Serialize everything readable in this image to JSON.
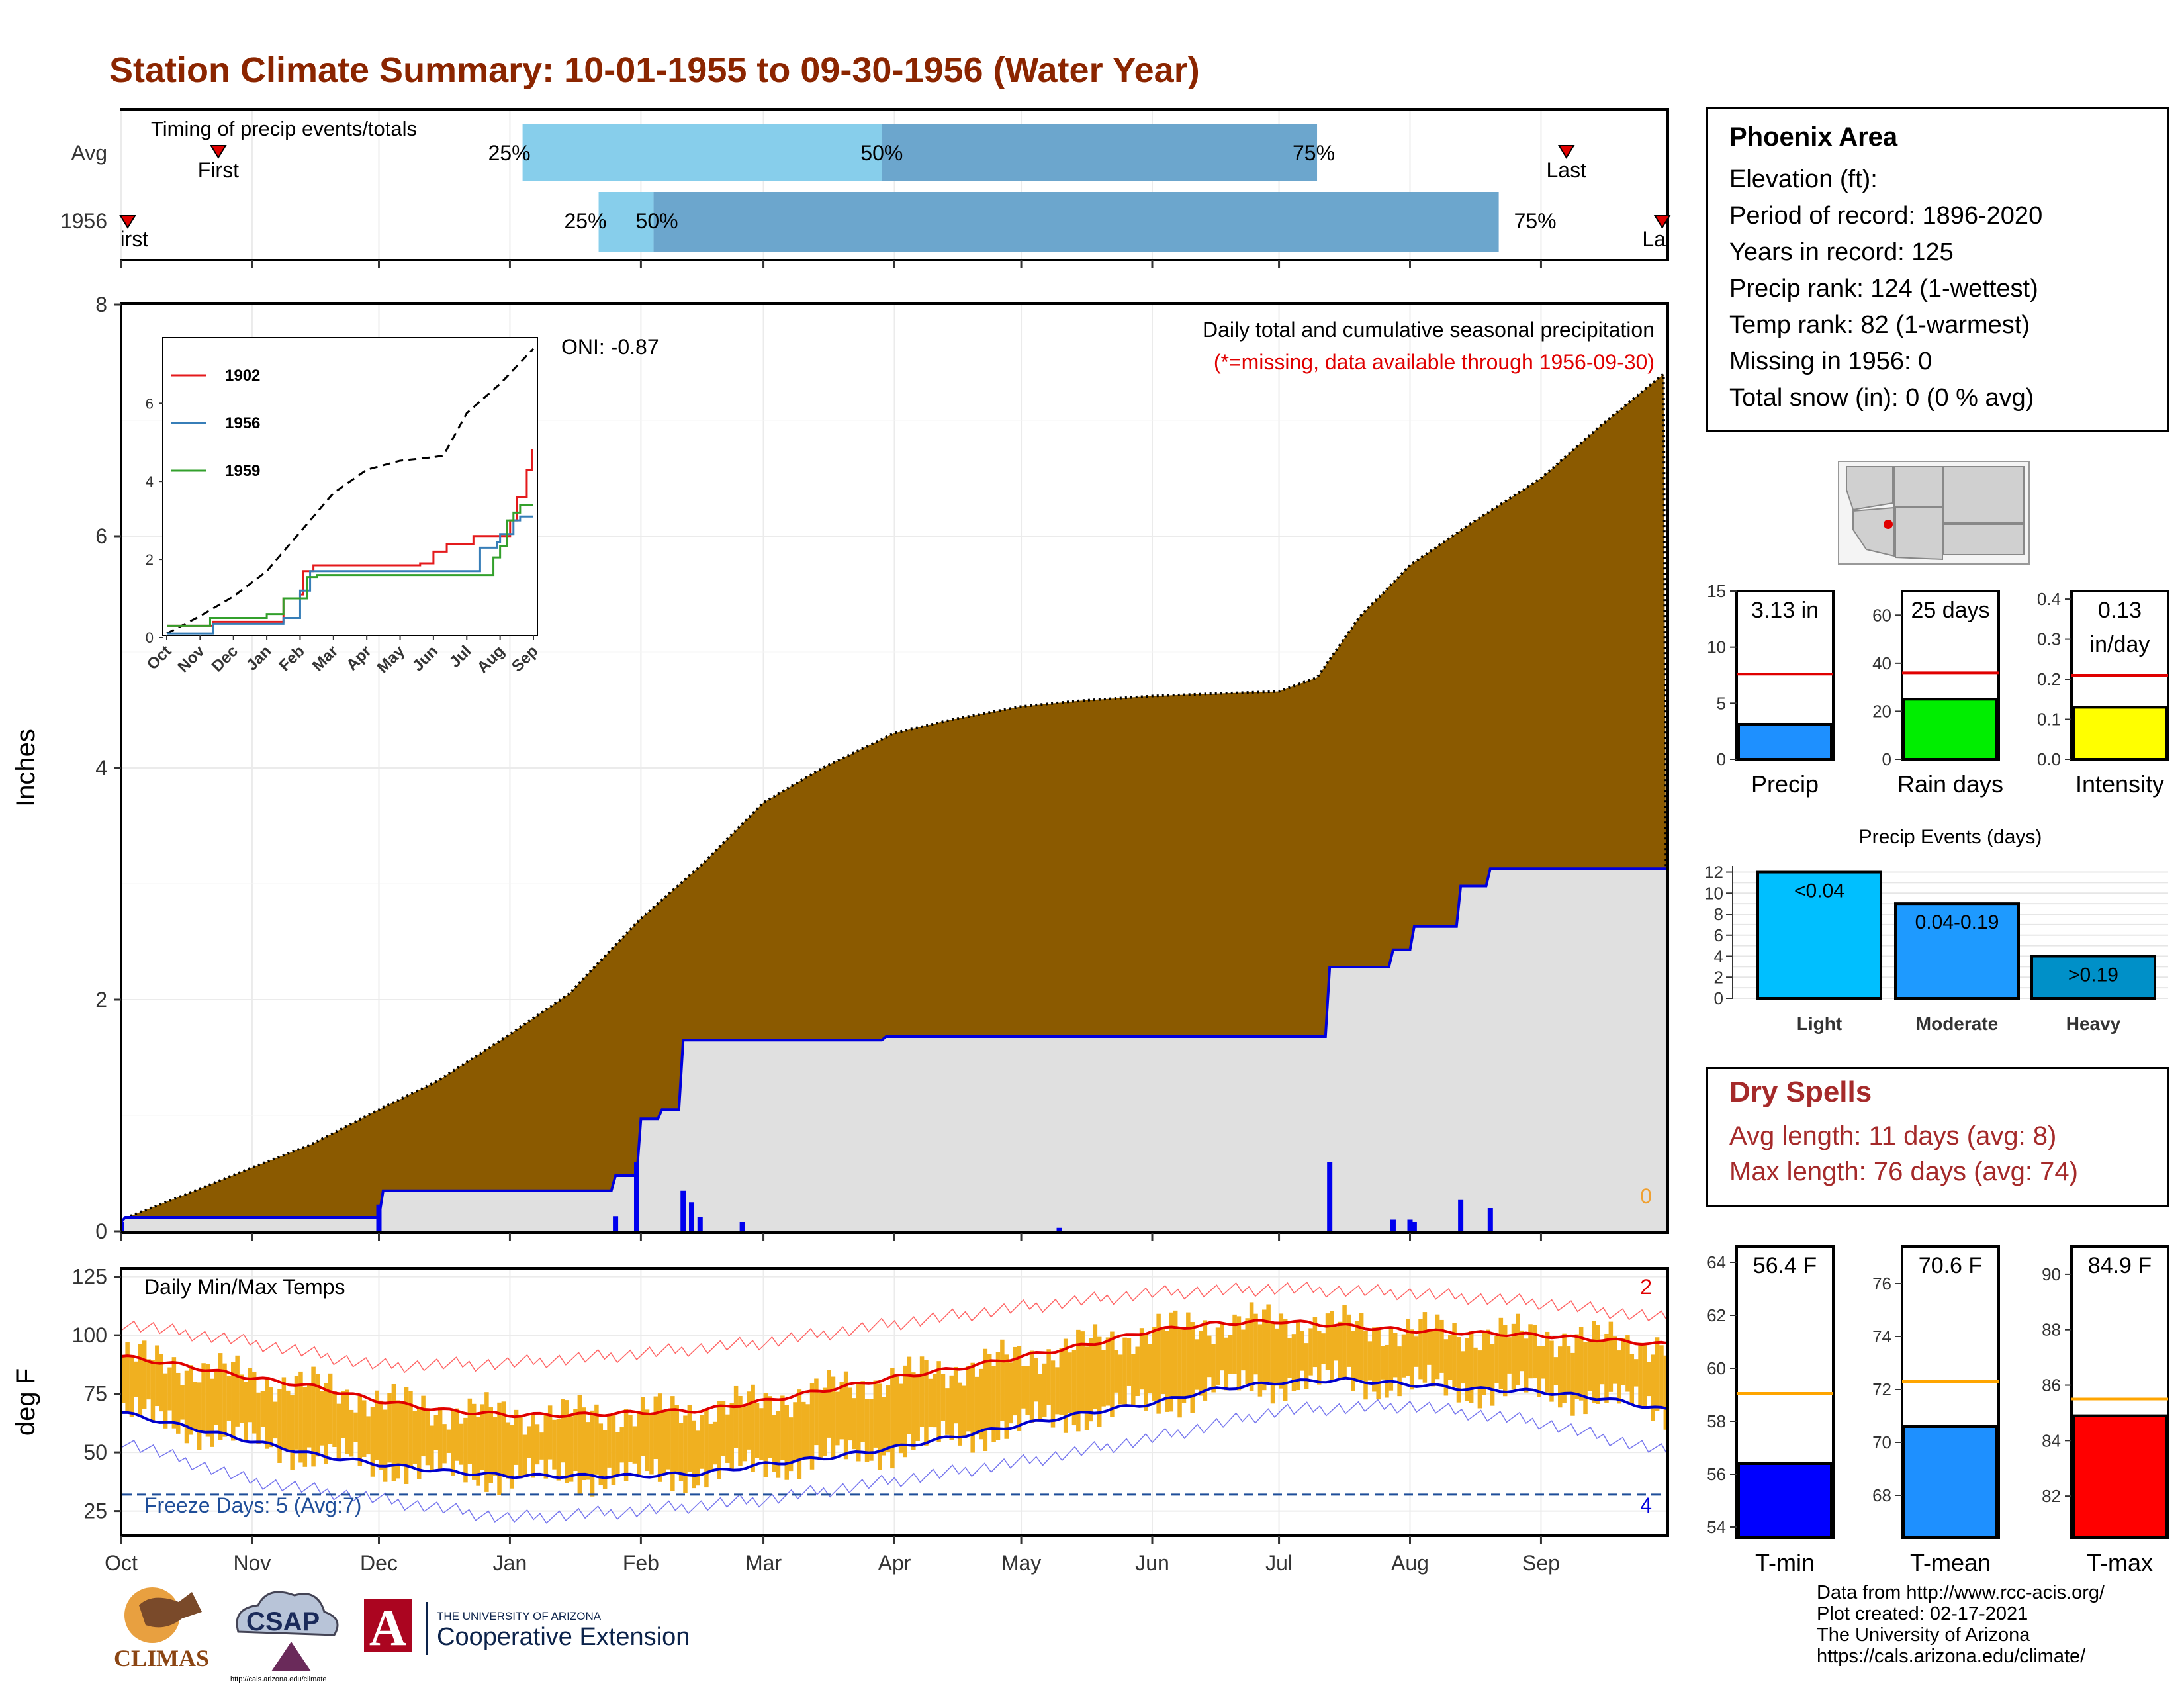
{
  "title": "Station Climate Summary: 10-01-1955 to 09-30-1956 (Water Year)",
  "colors": {
    "title": "#8b2500",
    "precip_fill": "#8b5a00",
    "obs_fill": "#e0e0e0",
    "obs_line": "#0000dd",
    "red": "#e00000",
    "gold": "#f0b020",
    "timing_light": "#87ceeb",
    "timing_dark": "#6ca6cd"
  },
  "timing": {
    "label": "Timing of precip events/totals",
    "rows": [
      {
        "name": "Avg",
        "p25": "25%",
        "p50": "50%",
        "p75": "75%",
        "first": "First",
        "last": "Last"
      },
      {
        "name": "1956",
        "p25": "25%",
        "p50": "50%",
        "p75": "75%",
        "first": "First",
        "last": "Last"
      }
    ],
    "avg": {
      "first": "1955-10-24",
      "p25": "1956-01-04",
      "p50": "1956-03-29",
      "p75": "1956-07-10",
      "last": "1956-09-07"
    },
    "y1956": {
      "first": "1955-10-01",
      "p25": "1956-01-22",
      "p50": "1956-02-04",
      "p75": "1956-08-22",
      "last": "1956-09-30"
    }
  },
  "station": {
    "name": "Phoenix Area",
    "lines": [
      "Elevation (ft):",
      "Period of record: 1896-2020",
      "Years in record: 125",
      "Precip rank: 124 (1-wettest)",
      "Temp rank: 82 (1-warmest)",
      "Missing in 1956: 0",
      "Total snow (in): 0 (0 % avg)"
    ]
  },
  "dry_spells": {
    "title": "Dry Spells",
    "avg_length": "Avg length: 11 days (avg: 8)",
    "max_length": "Max length: 76 days (avg: 74)"
  },
  "credits": [
    "Data from http://www.rcc-acis.org/",
    "Plot created: 02-17-2021",
    "The University of Arizona",
    "https://cals.arizona.edu/climate/"
  ],
  "logos": {
    "climas": "CLIMAS",
    "csap": "CSAP",
    "csap_url": "http://cals.arizona.edu/climate",
    "ua_line1": "THE UNIVERSITY OF ARIZONA",
    "ua_line2": "Cooperative Extension"
  },
  "chart_data": [
    {
      "id": "precip",
      "type": "area",
      "title": "Daily total and cumulative seasonal precipitation",
      "subtitle": "(*=missing, data available through 1956-09-30)",
      "annotation": "ONI: -0.87",
      "count_label": "0",
      "ylabel": "Inches",
      "ylim": [
        0,
        8
      ],
      "yticks": [
        0,
        2,
        4,
        6,
        8
      ],
      "xlabels": [
        "Oct",
        "Nov",
        "Dec",
        "Jan",
        "Feb",
        "Mar",
        "Apr",
        "May",
        "Jun",
        "Jul",
        "Aug",
        "Sep"
      ],
      "avg_cumulative": {
        "x": [
          "10-01",
          "10-15",
          "11-01",
          "11-15",
          "12-01",
          "12-15",
          "01-01",
          "01-15",
          "02-01",
          "02-15",
          "03-01",
          "03-15",
          "04-01",
          "04-15",
          "05-01",
          "05-15",
          "06-01",
          "06-15",
          "07-01",
          "07-10",
          "07-20",
          "08-01",
          "08-15",
          "09-01",
          "09-15",
          "09-30"
        ],
        "y": [
          0.1,
          0.3,
          0.55,
          0.75,
          1.05,
          1.3,
          1.7,
          2.05,
          2.7,
          3.15,
          3.7,
          4.0,
          4.3,
          4.42,
          4.53,
          4.58,
          4.62,
          4.64,
          4.66,
          4.78,
          5.3,
          5.75,
          6.1,
          6.5,
          6.95,
          7.4
        ]
      },
      "observed_cumulative": {
        "x": [
          "10-01",
          "10-02",
          "12-01",
          "12-02",
          "01-25",
          "01-26",
          "01-31",
          "02-01",
          "02-05",
          "02-06",
          "02-10",
          "02-11",
          "03-29",
          "03-30",
          "07-12",
          "07-13",
          "07-27",
          "07-28",
          "08-01",
          "08-02",
          "08-12",
          "08-13",
          "08-19",
          "08-20",
          "09-30"
        ],
        "y": [
          0.08,
          0.12,
          0.12,
          0.35,
          0.35,
          0.48,
          0.48,
          0.97,
          0.97,
          1.05,
          1.05,
          1.65,
          1.65,
          1.68,
          1.68,
          2.28,
          2.28,
          2.43,
          2.43,
          2.63,
          2.63,
          2.98,
          2.98,
          3.13,
          3.13
        ]
      },
      "daily": {
        "x": [
          "10-01",
          "12-01",
          "01-26",
          "01-31",
          "02-11",
          "02-13",
          "02-15",
          "02-25",
          "05-10",
          "07-13",
          "07-28",
          "08-01",
          "08-02",
          "08-13",
          "08-20"
        ],
        "y": [
          0.08,
          0.23,
          0.13,
          0.6,
          0.35,
          0.25,
          0.12,
          0.08,
          0.03,
          0.6,
          0.1,
          0.1,
          0.08,
          0.27,
          0.2
        ]
      }
    },
    {
      "id": "inset",
      "type": "line",
      "xlabels": [
        "Oct",
        "Nov",
        "Dec",
        "Jan",
        "Feb",
        "Mar",
        "Apr",
        "May",
        "Jun",
        "Jul",
        "Aug",
        "Sep"
      ],
      "yticks": [
        0,
        2,
        4,
        6
      ],
      "series": [
        {
          "name": "1902",
          "color": "#e41a1c",
          "x": [
            0,
            1.2,
            1.4,
            3.2,
            3.5,
            4.0,
            4.1,
            4.4,
            6.0,
            7.3,
            7.6,
            8.0,
            8.4,
            9.2,
            10.3,
            10.5,
            10.8,
            10.95,
            11.0
          ],
          "y": [
            0.3,
            0.3,
            0.4,
            0.4,
            1.0,
            1.1,
            1.7,
            1.85,
            1.85,
            1.85,
            1.9,
            2.2,
            2.4,
            2.6,
            3.0,
            3.6,
            4.3,
            4.8,
            4.8
          ]
        },
        {
          "name": "1956",
          "color": "#377eb8",
          "x": [
            0,
            1.0,
            1.4,
            3.5,
            4.0,
            4.3,
            5.9,
            6.0,
            9.4,
            9.9,
            10.0,
            10.4,
            10.6,
            11.0
          ],
          "y": [
            0.1,
            0.1,
            0.35,
            0.5,
            1.2,
            1.7,
            1.7,
            1.7,
            2.3,
            2.45,
            2.65,
            3.0,
            3.1,
            3.1
          ]
        },
        {
          "name": "1959",
          "color": "#33a02c",
          "x": [
            0,
            1.3,
            3.0,
            3.5,
            4.2,
            4.5,
            9.0,
            9.8,
            10.0,
            10.2,
            10.4,
            10.6,
            11.0
          ],
          "y": [
            0.3,
            0.5,
            0.6,
            1.0,
            1.55,
            1.6,
            1.6,
            2.05,
            2.35,
            3.0,
            3.2,
            3.4,
            3.4
          ]
        }
      ],
      "avg": {
        "x": [
          0,
          1,
          2,
          3,
          4,
          5,
          6,
          7,
          8,
          8.3,
          9,
          10,
          10.5,
          11
        ],
        "y": [
          0.1,
          0.55,
          1.05,
          1.7,
          2.7,
          3.7,
          4.3,
          4.53,
          4.62,
          4.66,
          5.75,
          6.5,
          6.95,
          7.4
        ]
      }
    },
    {
      "id": "temps",
      "type": "line",
      "title": "Daily Min/Max Temps",
      "ylabel": "deg F",
      "ylim": [
        15,
        128
      ],
      "yticks": [
        25,
        50,
        75,
        100,
        125
      ],
      "freeze_label": "Freeze Days: 5 (Avg:7)",
      "freeze_line": 32,
      "count_max": "2",
      "count_min": "4",
      "avg_max": {
        "x": [
          0,
          0.5,
          1,
          1.5,
          2,
          2.5,
          3,
          3.5,
          4,
          4.5,
          5,
          5.5,
          6,
          6.5,
          7,
          7.5,
          8,
          8.5,
          9,
          9.5,
          10,
          10.5,
          11,
          11.5,
          12
        ],
        "y": [
          91,
          87,
          82,
          78,
          72,
          68,
          66,
          66,
          67,
          68,
          72,
          77,
          82,
          86,
          91,
          96,
          102,
          105,
          106,
          104,
          102,
          101,
          100,
          98,
          96
        ]
      },
      "avg_min": {
        "x": [
          0,
          0.5,
          1,
          1.5,
          2,
          2.5,
          3,
          3.5,
          4,
          4.5,
          5,
          5.5,
          6,
          6.5,
          7,
          7.5,
          8,
          8.5,
          9,
          9.5,
          10,
          10.5,
          11,
          11.5,
          12
        ],
        "y": [
          67,
          61,
          55,
          49,
          45,
          42,
          40,
          40,
          40,
          41,
          45,
          48,
          52,
          57,
          62,
          67,
          71,
          77,
          80,
          81,
          79,
          77,
          76,
          73,
          68
        ]
      },
      "record_max": {
        "x": [
          0,
          1,
          2,
          3,
          4,
          5,
          6,
          7,
          8,
          9,
          10,
          11,
          12
        ],
        "y": [
          105,
          97,
          87,
          88,
          92,
          97,
          105,
          112,
          118,
          120,
          118,
          114,
          107
        ]
      },
      "record_min": {
        "x": [
          0,
          1,
          2,
          3,
          4,
          5,
          6,
          7,
          8,
          9,
          10,
          11,
          12
        ],
        "y": [
          55,
          38,
          30,
          22,
          25,
          30,
          38,
          46,
          56,
          68,
          70,
          63,
          50
        ]
      }
    },
    {
      "id": "summary_precip",
      "type": "bar",
      "categories": [
        "Precip",
        "Rain days",
        "Intensity"
      ],
      "values": [
        3.13,
        25,
        0.13
      ],
      "averages": [
        7.6,
        36,
        0.21
      ],
      "labels": [
        "3.13 in",
        "25 days",
        "0.13 in/day"
      ],
      "ylims": [
        [
          0,
          15
        ],
        [
          0,
          70
        ],
        [
          0,
          0.42
        ]
      ]
    },
    {
      "id": "precip_events",
      "type": "bar",
      "title": "Precip Events (days)",
      "categories": [
        "Light",
        "Moderate",
        "Heavy"
      ],
      "bar_labels": [
        "<0.04",
        "0.04-0.19",
        ">0.19"
      ],
      "values": [
        12,
        9,
        4
      ],
      "yticks": [
        0,
        2,
        4,
        6,
        8,
        10,
        12
      ]
    },
    {
      "id": "summary_temps",
      "type": "bar",
      "categories": [
        "T-min",
        "T-mean",
        "T-max"
      ],
      "values": [
        56.4,
        70.6,
        84.9
      ],
      "averages": [
        59.05,
        72.3,
        85.5
      ],
      "labels": [
        "56.4 F",
        "70.6 F",
        "84.9 F"
      ],
      "ylims": [
        [
          53.6,
          64.6
        ],
        [
          66.4,
          77.4
        ],
        [
          80.5,
          91.0
        ]
      ]
    }
  ]
}
